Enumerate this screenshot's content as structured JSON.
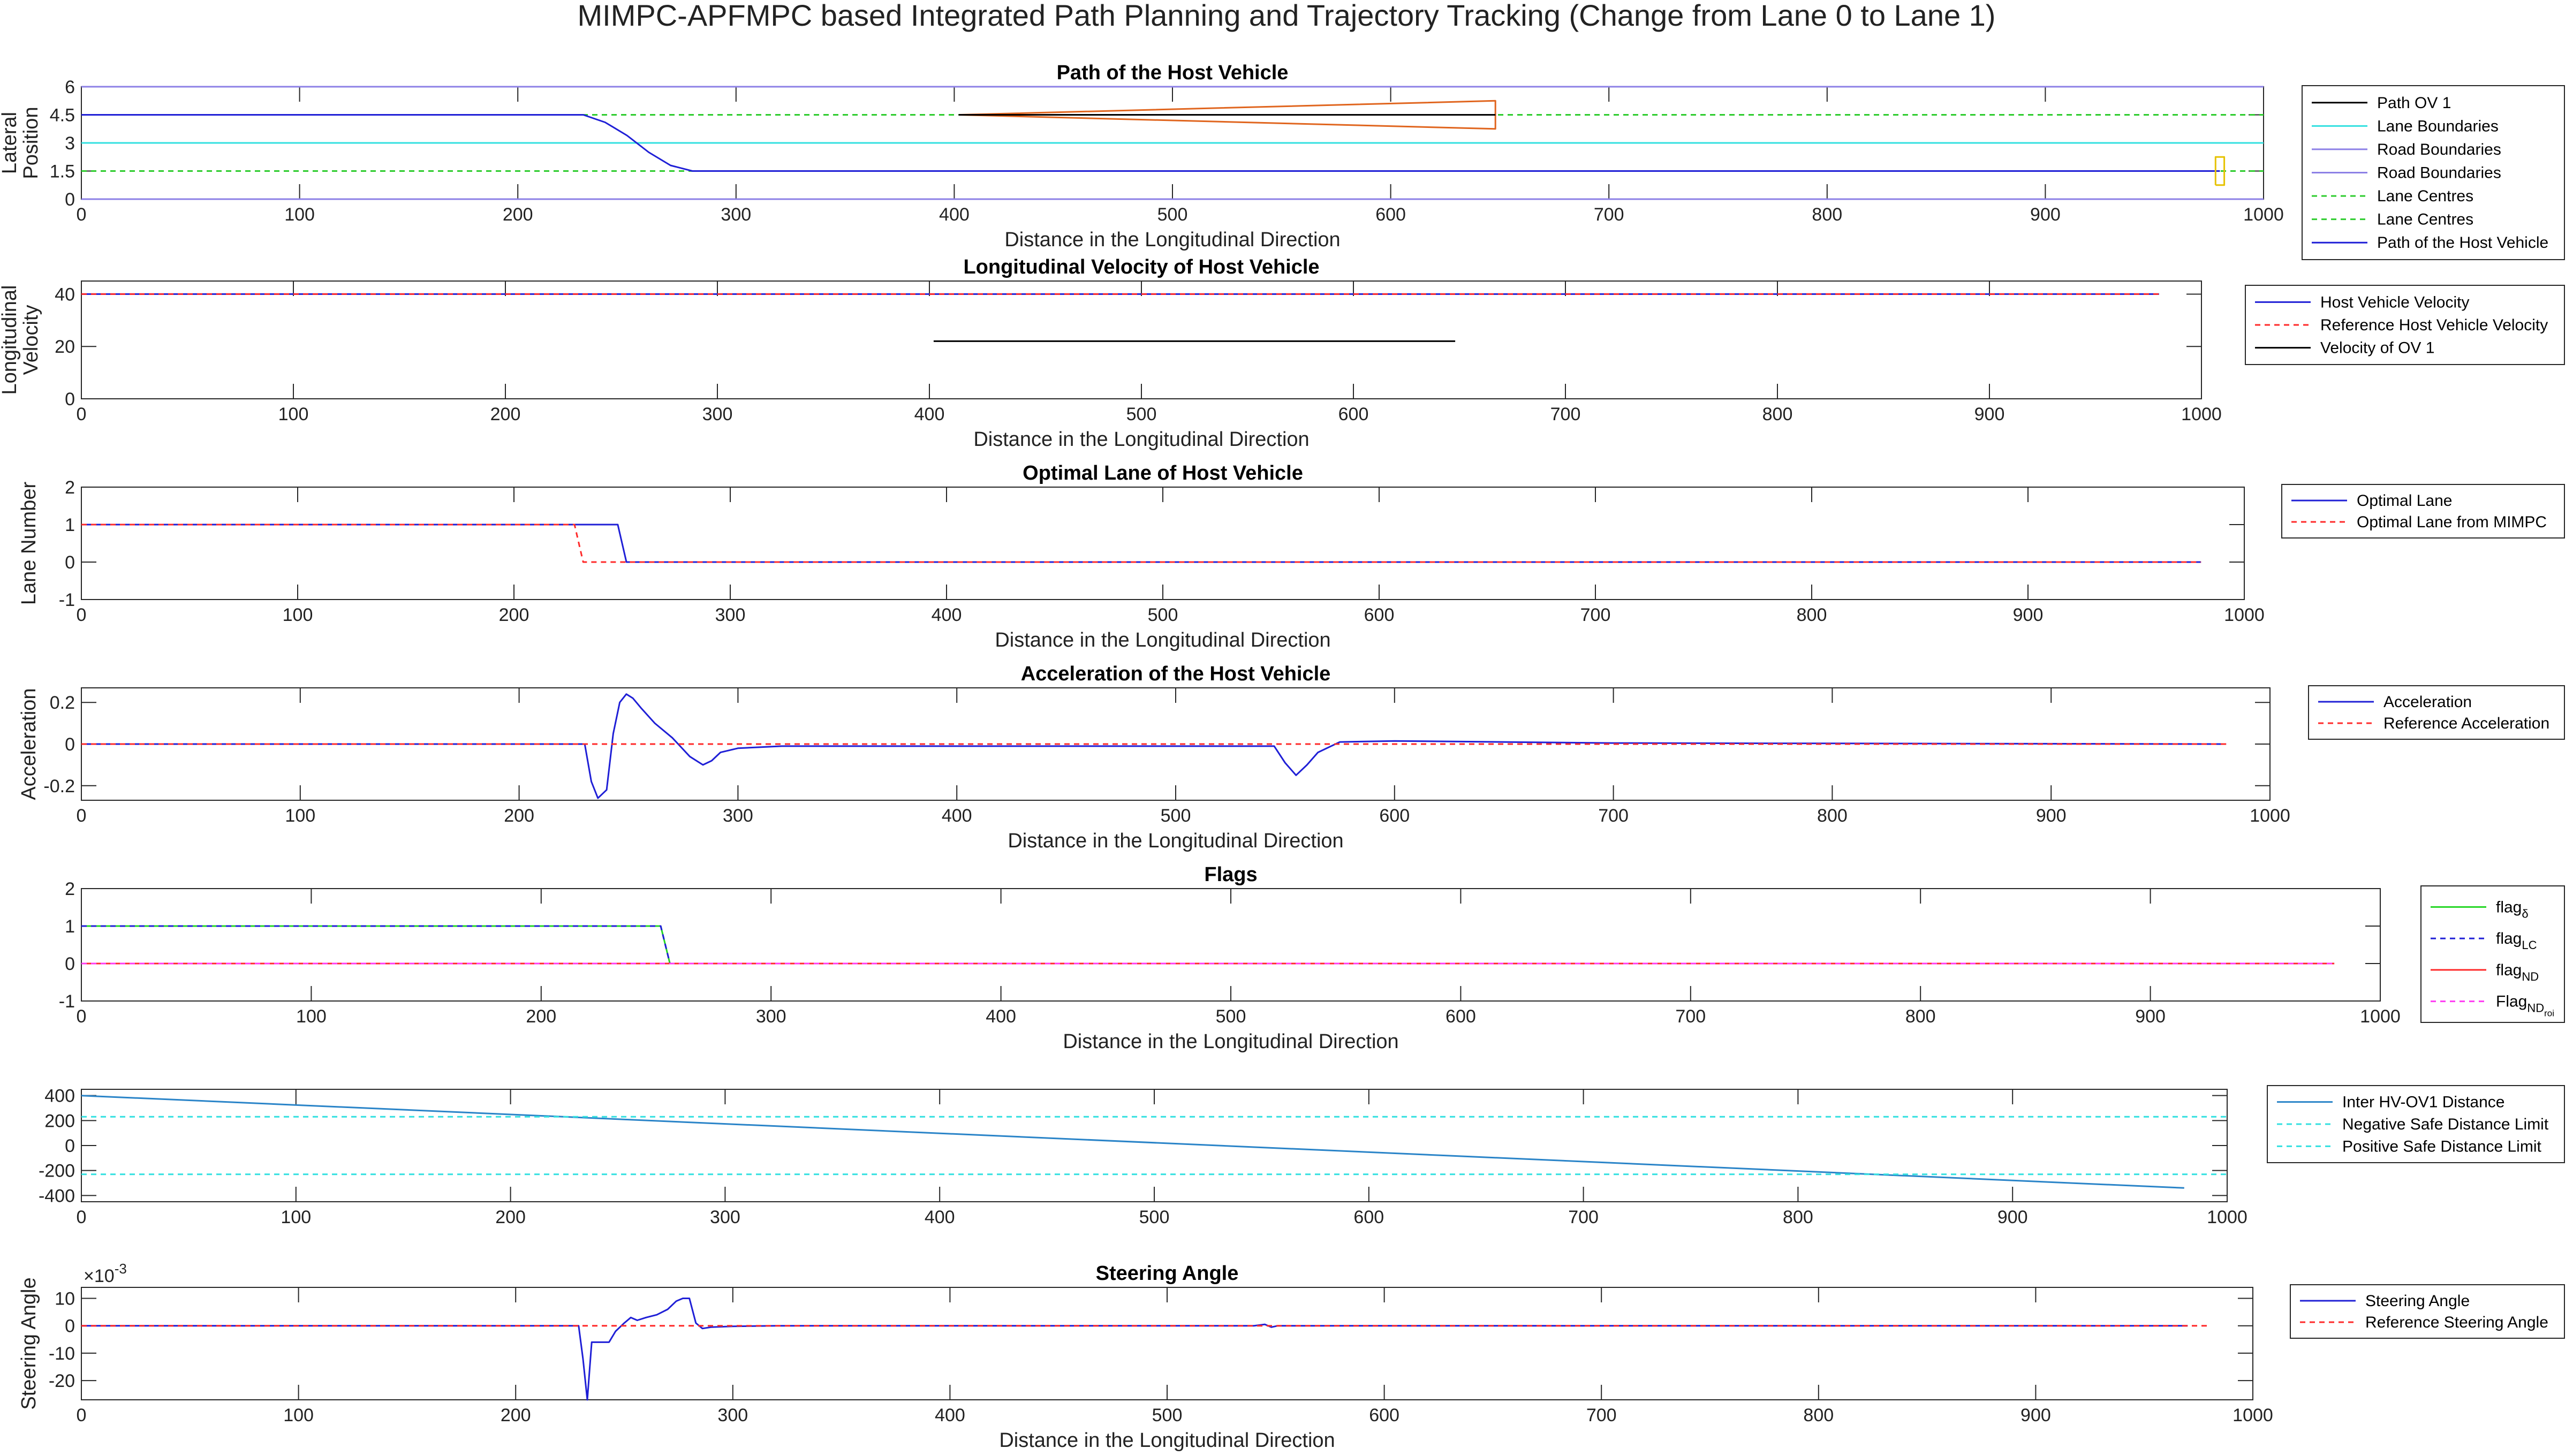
{
  "figure_title": "MIMPC-APFMPC based Integrated Path Planning and Trajectory Tracking (Change from Lane 0 to Lane 1)",
  "colors": {
    "path_ov": "#000000",
    "lane_boundaries": "#33e0e0",
    "road_boundaries": "#8c80e6",
    "lane_centres": "#2ecc2e",
    "host_path": "#1f1fd6",
    "reference": "#ff2a2a",
    "ov_shape": "#e0651e",
    "host_box": "#e6c200",
    "distance": "#2a84c8",
    "flag_delta": "#23d623",
    "flag_lc": "#1f1fd6",
    "flag_nd": "#ff2a2a",
    "flag_ndroi": "#ff3bf2"
  },
  "chart_data": [
    {
      "id": "path",
      "type": "line",
      "title": "Path of the Host Vehicle",
      "xlabel": "Distance in the Longitudinal Direction",
      "ylabel": [
        "Lateral",
        "Position"
      ],
      "xlim": [
        0,
        1000
      ],
      "ylim": [
        0,
        6
      ],
      "xticks": [
        0,
        100,
        200,
        300,
        400,
        500,
        600,
        700,
        800,
        900,
        1000
      ],
      "yticks": [
        0,
        1.5,
        3,
        4.5,
        6
      ],
      "yticklabels": [
        "0",
        "1.5",
        "3",
        "4.5",
        "6"
      ],
      "legend": [
        "Path OV 1",
        "Lane Boundaries",
        "Road Boundaries",
        "Road Boundaries",
        "Lane Centres",
        "Lane Centres",
        "Path of the Host Vehicle"
      ],
      "series": [
        {
          "style": "lane_boundaries",
          "dash": false,
          "x": [
            0,
            1000
          ],
          "y": [
            3,
            3
          ]
        },
        {
          "style": "road_boundaries",
          "dash": false,
          "x": [
            0,
            1000
          ],
          "y": [
            0,
            0
          ]
        },
        {
          "style": "road_boundaries",
          "dash": false,
          "x": [
            0,
            1000
          ],
          "y": [
            6,
            6
          ]
        },
        {
          "style": "lane_centres",
          "dash": true,
          "x": [
            0,
            1000
          ],
          "y": [
            1.5,
            1.5
          ]
        },
        {
          "style": "lane_centres",
          "dash": true,
          "x": [
            0,
            1000
          ],
          "y": [
            4.5,
            4.5
          ]
        },
        {
          "style": "host_path",
          "dash": false,
          "x": [
            0,
            230,
            240,
            250,
            260,
            270,
            280,
            980
          ],
          "y": [
            4.5,
            4.5,
            4.1,
            3.4,
            2.5,
            1.8,
            1.5,
            1.5
          ]
        },
        {
          "style": "ov_shape",
          "dash": false,
          "x": [
            402,
            648,
            648,
            402
          ],
          "y": [
            4.5,
            5.25,
            3.75,
            4.5
          ]
        },
        {
          "style": "path_ov",
          "dash": false,
          "x": [
            402,
            648
          ],
          "y": [
            4.5,
            4.5
          ]
        },
        {
          "style": "host_box",
          "dash": false,
          "x": [
            978,
            982,
            982,
            978,
            978
          ],
          "y": [
            0.75,
            0.75,
            2.25,
            2.25,
            0.75
          ]
        }
      ]
    },
    {
      "id": "velocity",
      "type": "line",
      "title": "Longitudinal Velocity of Host Vehicle",
      "xlabel": "Distance in the Longitudinal Direction",
      "ylabel": [
        "Longitudinal",
        "Velocity"
      ],
      "xlim": [
        0,
        1000
      ],
      "ylim": [
        0,
        45
      ],
      "xticks": [
        0,
        100,
        200,
        300,
        400,
        500,
        600,
        700,
        800,
        900,
        1000
      ],
      "yticks": [
        0,
        20,
        40
      ],
      "yticklabels": [
        "0",
        "20",
        "40"
      ],
      "legend": [
        "Host Vehicle Velocity",
        "Reference Host Vehicle Velocity",
        "Velocity of OV 1"
      ],
      "series": [
        {
          "style": "host_path",
          "dash": false,
          "x": [
            0,
            980
          ],
          "y": [
            40,
            40
          ]
        },
        {
          "style": "reference",
          "dash": true,
          "x": [
            0,
            980
          ],
          "y": [
            40,
            40
          ]
        },
        {
          "style": "path_ov",
          "dash": false,
          "x": [
            402,
            648
          ],
          "y": [
            22,
            22
          ]
        }
      ]
    },
    {
      "id": "lane",
      "type": "line",
      "title": "Optimal Lane of Host Vehicle",
      "xlabel": "Distance in the Longitudinal Direction",
      "ylabel": [
        "Lane Number"
      ],
      "xlim": [
        0,
        1000
      ],
      "ylim": [
        -1,
        2
      ],
      "xticks": [
        0,
        100,
        200,
        300,
        400,
        500,
        600,
        700,
        800,
        900,
        1000
      ],
      "yticks": [
        -1,
        0,
        1,
        2
      ],
      "yticklabels": [
        "-1",
        "0",
        "1",
        "2"
      ],
      "legend": [
        "Optimal Lane",
        "Optimal Lane from MIMPC"
      ],
      "series": [
        {
          "style": "host_path",
          "dash": false,
          "x": [
            0,
            248,
            252,
            980
          ],
          "y": [
            1,
            1,
            0,
            0
          ]
        },
        {
          "style": "reference",
          "dash": true,
          "x": [
            0,
            228,
            232,
            980
          ],
          "y": [
            1,
            1,
            0,
            0
          ]
        }
      ]
    },
    {
      "id": "accel",
      "type": "line",
      "title": "Acceleration of the Host Vehicle",
      "xlabel": "Distance in the Longitudinal Direction",
      "ylabel": [
        "Acceleration"
      ],
      "xlim": [
        0,
        1000
      ],
      "ylim": [
        -0.27,
        0.27
      ],
      "xticks": [
        0,
        100,
        200,
        300,
        400,
        500,
        600,
        700,
        800,
        900,
        1000
      ],
      "yticks": [
        -0.2,
        0,
        0.2
      ],
      "yticklabels": [
        "-0.2",
        "0",
        "0.2"
      ],
      "legend": [
        "Acceleration",
        "Reference Acceleration"
      ],
      "series": [
        {
          "style": "host_path",
          "dash": false,
          "x": [
            0,
            230,
            233,
            236,
            240,
            243,
            246,
            249,
            252,
            256,
            262,
            270,
            278,
            284,
            288,
            292,
            300,
            320,
            545,
            550,
            555,
            560,
            565,
            575,
            600,
            700,
            980
          ],
          "y": [
            0,
            0,
            -0.18,
            -0.26,
            -0.22,
            0.05,
            0.2,
            0.24,
            0.22,
            0.17,
            0.1,
            0.03,
            -0.06,
            -0.1,
            -0.08,
            -0.04,
            -0.02,
            -0.01,
            -0.01,
            -0.09,
            -0.15,
            -0.1,
            -0.04,
            0.01,
            0.015,
            0.005,
            0
          ]
        },
        {
          "style": "reference",
          "dash": true,
          "x": [
            0,
            980
          ],
          "y": [
            0,
            0
          ]
        }
      ]
    },
    {
      "id": "flags",
      "type": "line",
      "title": "Flags",
      "xlabel": "Distance in the Longitudinal Direction",
      "ylabel": [],
      "xlim": [
        0,
        1000
      ],
      "ylim": [
        -1,
        2
      ],
      "xticks": [
        0,
        100,
        200,
        300,
        400,
        500,
        600,
        700,
        800,
        900,
        1000
      ],
      "yticks": [
        -1,
        0,
        1,
        2
      ],
      "yticklabels": [
        "-1",
        "0",
        "1",
        "2"
      ],
      "legend": [
        {
          "text": "flag",
          "sub": "δ"
        },
        {
          "text": "flag",
          "sub": "LC"
        },
        {
          "text": "flag",
          "sub": "ND"
        },
        {
          "text": "Flag",
          "sub": "ND",
          "subsub": "roi"
        }
      ],
      "series": [
        {
          "style": "flag_delta",
          "dash": false,
          "x": [
            0,
            252,
            256,
            980
          ],
          "y": [
            1,
            1,
            0,
            0
          ]
        },
        {
          "style": "flag_lc",
          "dash": true,
          "x": [
            0,
            252,
            256,
            980
          ],
          "y": [
            1,
            1,
            0,
            0
          ]
        },
        {
          "style": "flag_nd",
          "dash": false,
          "x": [
            0,
            980
          ],
          "y": [
            0,
            0
          ]
        },
        {
          "style": "flag_ndroi",
          "dash": true,
          "x": [
            0,
            980
          ],
          "y": [
            0,
            0
          ]
        }
      ]
    },
    {
      "id": "distance",
      "type": "line",
      "title": "",
      "xlabel": "",
      "ylabel": [],
      "xlim": [
        0,
        1000
      ],
      "ylim": [
        -450,
        450
      ],
      "xticks": [
        0,
        100,
        200,
        300,
        400,
        500,
        600,
        700,
        800,
        900,
        1000
      ],
      "yticks": [
        -400,
        -200,
        0,
        200,
        400
      ],
      "yticklabels": [
        "-400",
        "-200",
        "0",
        "200",
        "400"
      ],
      "legend": [
        "Inter HV-OV1 Distance",
        "Negative Safe Distance Limit",
        "Positive Safe Distance Limit"
      ],
      "series": [
        {
          "style": "distance",
          "dash": false,
          "x": [
            0,
            980
          ],
          "y": [
            400,
            -340
          ]
        },
        {
          "style": "lane_boundaries",
          "dash": true,
          "x": [
            0,
            1000
          ],
          "y": [
            230,
            230
          ]
        },
        {
          "style": "lane_boundaries",
          "dash": true,
          "x": [
            0,
            1000
          ],
          "y": [
            -230,
            -230
          ]
        }
      ]
    },
    {
      "id": "steering",
      "type": "line",
      "title": "Steering Angle",
      "xlabel": "Distance in the Longitudinal Direction",
      "ylabel": [
        "Steering Angle"
      ],
      "exponent": "×10",
      "exponent_power": "-3",
      "xlim": [
        0,
        1000
      ],
      "ylim": [
        -27,
        14
      ],
      "xticks": [
        0,
        100,
        200,
        300,
        400,
        500,
        600,
        700,
        800,
        900,
        1000
      ],
      "yticks": [
        -20,
        -10,
        0,
        10
      ],
      "yticklabels": [
        "-20",
        "-10",
        "0",
        "10"
      ],
      "legend": [
        "Steering Angle",
        "Reference Steering Angle"
      ],
      "series": [
        {
          "style": "host_path",
          "dash": false,
          "x": [
            0,
            229,
            231,
            233,
            235,
            240,
            243,
            246,
            250,
            253,
            256,
            260,
            265,
            270,
            274,
            277,
            280,
            283,
            286,
            290,
            300,
            320,
            540,
            545,
            548,
            551,
            560,
            970
          ],
          "y": [
            0,
            0,
            -12,
            -27,
            -6,
            -6,
            -6,
            -2,
            1,
            3,
            2,
            3,
            4,
            6,
            9,
            10,
            10,
            1,
            -1,
            -0.5,
            -0.2,
            0,
            0,
            0.5,
            -0.5,
            0,
            0,
            0
          ]
        },
        {
          "style": "reference",
          "dash": true,
          "x": [
            0,
            980
          ],
          "y": [
            0,
            0
          ]
        }
      ]
    }
  ]
}
